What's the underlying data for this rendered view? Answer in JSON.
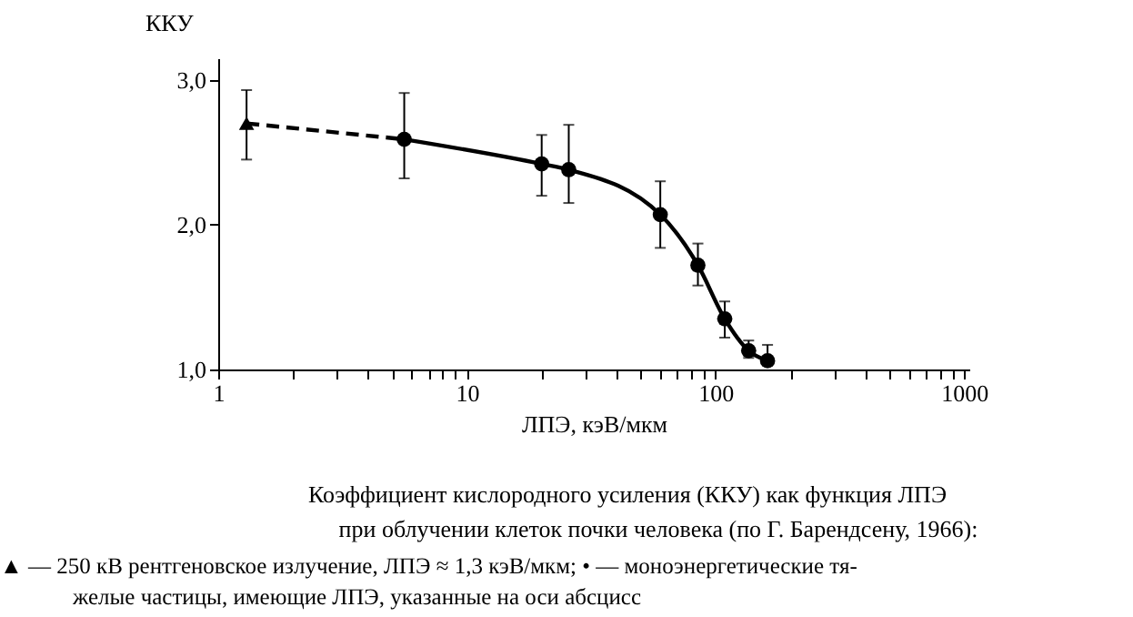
{
  "chart_data": {
    "type": "scatter",
    "ylabel": "ККУ",
    "xlabel": "ЛПЭ, кэВ/мкм",
    "log": "x",
    "grid": false,
    "xlim": [
      1,
      1050
    ],
    "ylim": [
      1,
      3.15
    ],
    "xticks": [
      1,
      {
        "value": 2,
        "label": null
      },
      {
        "value": 3,
        "label": null
      },
      {
        "value": 4,
        "label": null
      },
      {
        "value": 5,
        "label": null
      },
      {
        "value": 6,
        "label": null
      },
      {
        "value": 7,
        "label": null
      },
      {
        "value": 8,
        "label": null
      },
      {
        "value": 9,
        "label": null
      },
      10,
      {
        "value": 20,
        "label": null
      },
      {
        "value": 30,
        "label": null
      },
      {
        "value": 40,
        "label": null
      },
      {
        "value": 50,
        "label": null
      },
      {
        "value": 60,
        "label": null
      },
      {
        "value": 70,
        "label": null
      },
      {
        "value": 80,
        "label": null
      },
      {
        "value": 90,
        "label": null
      },
      100,
      {
        "value": 200,
        "label": null
      },
      {
        "value": 300,
        "label": null
      },
      {
        "value": 400,
        "label": null
      },
      {
        "value": 500,
        "label": null
      },
      {
        "value": 600,
        "label": null
      },
      {
        "value": 700,
        "label": null
      },
      {
        "value": 800,
        "label": null
      },
      {
        "value": 900,
        "label": null
      },
      1000
    ],
    "yticks": [
      {
        "value": 1,
        "label": "1,0"
      },
      {
        "value": 2,
        "label": "2,0"
      },
      {
        "value": 3,
        "label": "3,0"
      }
    ],
    "series": [
      {
        "type": "line",
        "line_style": "dashed",
        "color": "#000000",
        "x": [
          1.3,
          5.6
        ],
        "values": [
          2.7,
          2.59
        ]
      },
      {
        "type": "line",
        "line_style": "solid",
        "color": "#000000",
        "x": [
          5.6,
          20,
          25.7,
          60,
          85,
          109,
          136,
          162
        ],
        "values": [
          2.59,
          2.42,
          2.38,
          2.07,
          1.72,
          1.35,
          1.13,
          1.06
        ]
      },
      {
        "marker": "triangle",
        "color": "#000000",
        "x": [
          1.3
        ],
        "values": [
          2.7
        ],
        "errors": [
          [
            2.45,
            2.93
          ]
        ]
      },
      {
        "marker": "circle",
        "color": "#000000",
        "x": [
          5.6,
          20,
          25.7,
          60,
          85,
          109,
          136,
          162
        ],
        "values": [
          2.59,
          2.42,
          2.38,
          2.07,
          1.72,
          1.35,
          1.13,
          1.06
        ],
        "errors": [
          [
            2.32,
            2.91
          ],
          [
            2.2,
            2.62
          ],
          [
            2.15,
            2.69
          ],
          [
            1.84,
            2.3
          ],
          [
            1.58,
            1.87
          ],
          [
            1.22,
            1.47
          ],
          [
            1.08,
            1.2
          ],
          [
            1.03,
            1.17
          ]
        ]
      }
    ],
    "annotations": [
      "Коэффициент кислородного усиления (ККУ) как функция ЛПЭ",
      "при облучении клеток почки человека (по Г. Барендсену, 1966):",
      "▲ — 250 кВ рентгеновское излучение, ЛПЭ ≈ 1,3 кэВ/мкм; • — моноэнергетические тя-",
      "желые частицы, имеющие ЛПЭ, указанные на оси абсцисс"
    ]
  }
}
